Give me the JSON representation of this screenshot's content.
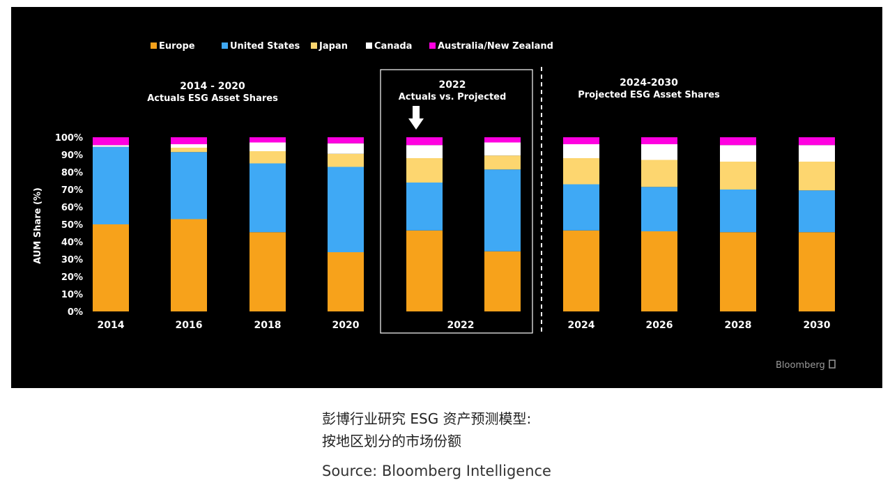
{
  "chart_data": {
    "type": "bar",
    "stacked": true,
    "ylabel": "AUM Share (%)",
    "ylim": [
      0,
      100
    ],
    "yticks": [
      "0%",
      "10%",
      "20%",
      "30%",
      "40%",
      "50%",
      "60%",
      "70%",
      "80%",
      "90%",
      "100%"
    ],
    "categories": [
      "2014",
      "2016",
      "2018",
      "2020",
      "2022",
      "2022",
      "2024",
      "2026",
      "2028",
      "2030"
    ],
    "series": [
      {
        "name": "Europe",
        "color": "#f7a21b",
        "values": [
          50,
          53,
          45.5,
          34,
          46.5,
          34.5,
          46.5,
          46,
          45.5,
          45.5
        ]
      },
      {
        "name": "United States",
        "color": "#3fa9f5",
        "values": [
          44.5,
          38.5,
          39.5,
          49,
          27.5,
          47,
          26.5,
          25.5,
          24.5,
          24
        ]
      },
      {
        "name": "Japan",
        "color": "#fdd66f",
        "values": [
          0,
          2.5,
          7,
          7.5,
          14,
          8,
          15,
          15.5,
          16,
          16.5
        ]
      },
      {
        "name": "Canada",
        "color": "#ffffff",
        "values": [
          1,
          2,
          5,
          6,
          7.5,
          7.5,
          8,
          9,
          9.5,
          9.5
        ]
      },
      {
        "name": "Australia/New Zealand",
        "color": "#ff00e0",
        "values": [
          4.5,
          4,
          3,
          3.5,
          4.5,
          3,
          4,
          4,
          4.5,
          4.5
        ]
      }
    ],
    "legend": [
      "Europe",
      "United States",
      "Japan",
      "Canada",
      "Australia/New Zealand"
    ],
    "legend_position": "top-left",
    "annotations": {
      "section_left_title": "2014 - 2020",
      "section_left_subtitle": "Actuals ESG Asset Shares",
      "section_mid_title": "2022",
      "section_mid_subtitle": "Actuals vs. Projected",
      "section_right_title": "2024-2030",
      "section_right_subtitle": "Projected ESG Asset Shares",
      "mid_xlabel": "2022"
    },
    "source_logo": "Bloomberg"
  },
  "caption": {
    "line1": "彭博行业研究 ESG 资产预测模型:",
    "line2": "按地区划分的市场份额",
    "source": "Source: Bloomberg Intelligence"
  }
}
